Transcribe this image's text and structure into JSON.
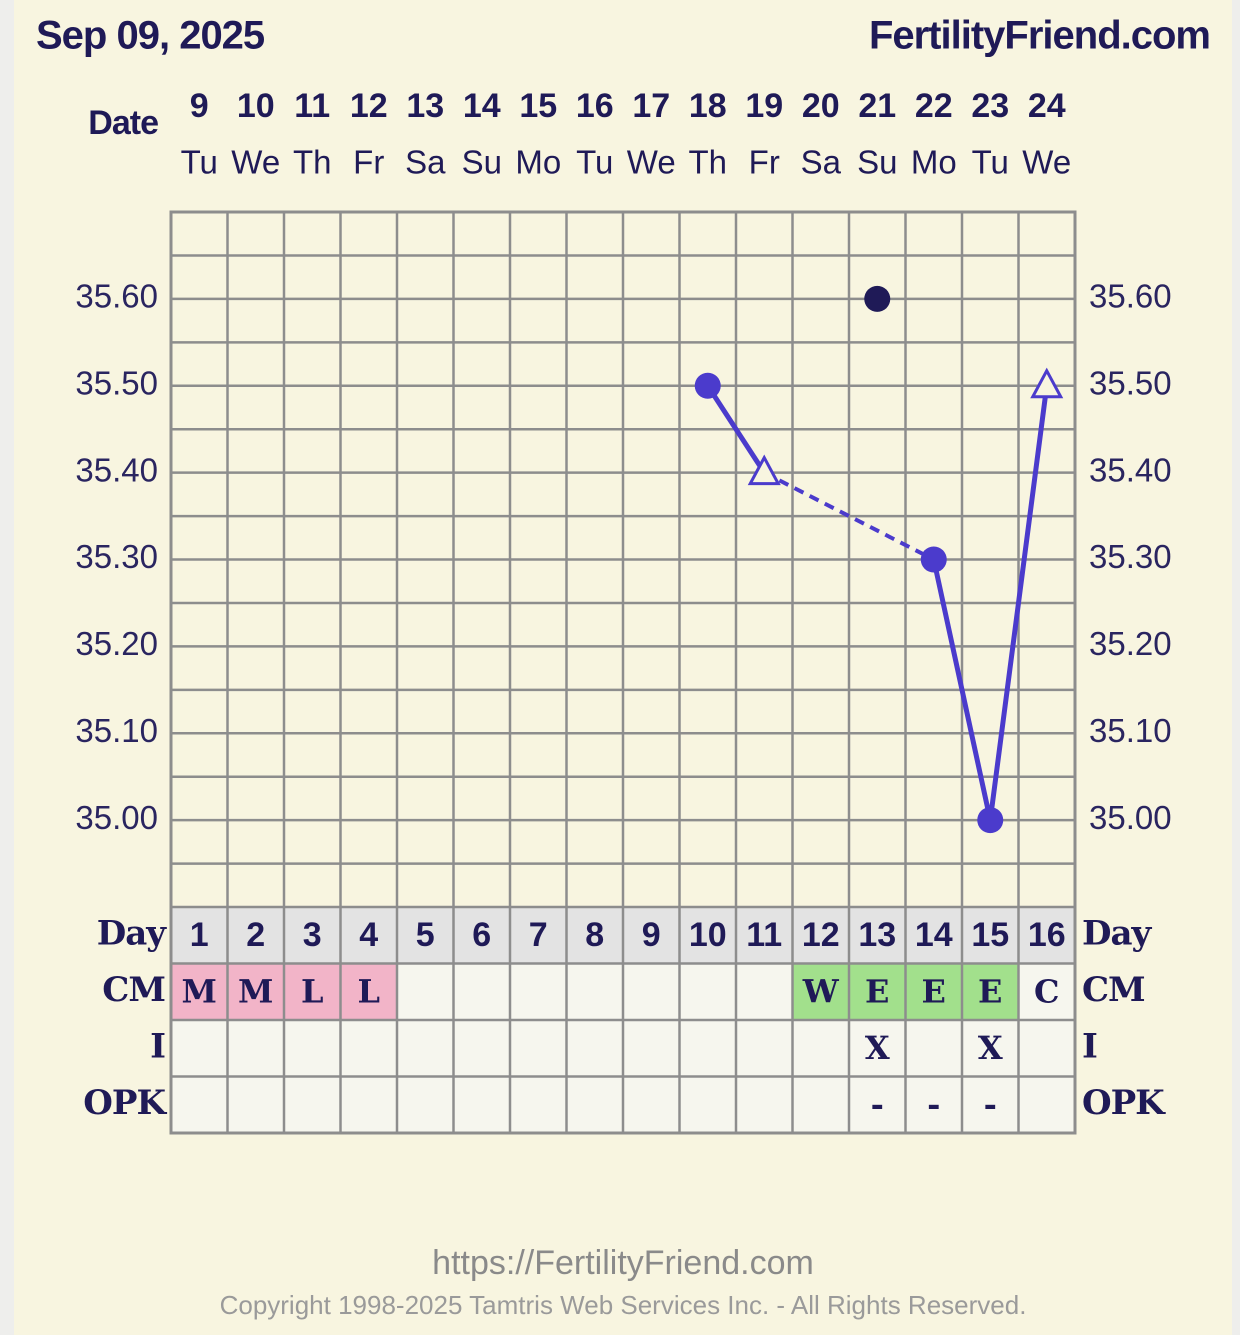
{
  "header": {
    "date": "Sep 09, 2025",
    "site": "FertilityFriend.com"
  },
  "chart_data": {
    "type": "line",
    "date_label": "Date",
    "dates": [
      "9",
      "10",
      "11",
      "12",
      "13",
      "14",
      "15",
      "16",
      "17",
      "18",
      "19",
      "20",
      "21",
      "22",
      "23",
      "24"
    ],
    "weekdays": [
      "Tu",
      "We",
      "Th",
      "Fr",
      "Sa",
      "Su",
      "Mo",
      "Tu",
      "We",
      "Th",
      "Fr",
      "Sa",
      "Su",
      "Mo",
      "Tu",
      "We"
    ],
    "ylim": [
      34.9,
      35.7
    ],
    "yticks": [
      {
        "value": 35.0,
        "label": "35.00"
      },
      {
        "value": 35.1,
        "label": "35.10"
      },
      {
        "value": 35.2,
        "label": "35.20"
      },
      {
        "value": 35.3,
        "label": "35.30"
      },
      {
        "value": 35.4,
        "label": "35.40"
      },
      {
        "value": 35.5,
        "label": "35.50"
      },
      {
        "value": 35.6,
        "label": "35.60"
      }
    ],
    "grid_yticks": [
      34.95,
      35.05,
      35.15,
      35.25,
      35.35,
      35.45,
      35.55,
      35.65
    ],
    "series": [
      {
        "color": "#4b3bcc",
        "gap_line": "dashed",
        "values": [
          null,
          null,
          null,
          null,
          null,
          null,
          null,
          null,
          null,
          35.5,
          35.4,
          null,
          null,
          35.3,
          35.0,
          35.5
        ],
        "markers": [
          null,
          null,
          null,
          null,
          null,
          null,
          null,
          null,
          null,
          "circle",
          "triangle",
          null,
          null,
          "circle",
          "circle",
          "triangle"
        ]
      },
      {
        "color": "#1f1a57",
        "values": [
          null,
          null,
          null,
          null,
          null,
          null,
          null,
          null,
          null,
          null,
          null,
          null,
          35.6,
          null,
          null,
          null
        ],
        "markers": [
          null,
          null,
          null,
          null,
          null,
          null,
          null,
          null,
          null,
          null,
          null,
          null,
          "circle",
          null,
          null,
          null
        ]
      }
    ]
  },
  "table": {
    "row_labels": [
      "Day",
      "CM",
      "I",
      "OPK"
    ],
    "rows": [
      [
        "1",
        "2",
        "3",
        "4",
        "5",
        "6",
        "7",
        "8",
        "9",
        "10",
        "11",
        "12",
        "13",
        "14",
        "15",
        "16"
      ],
      [
        "M",
        "M",
        "L",
        "L",
        null,
        null,
        null,
        null,
        null,
        null,
        null,
        "W",
        "E",
        "E",
        "E",
        "C"
      ],
      [
        null,
        null,
        null,
        null,
        null,
        null,
        null,
        null,
        null,
        null,
        null,
        null,
        "X",
        null,
        "X",
        null
      ],
      [
        null,
        null,
        null,
        null,
        null,
        null,
        null,
        null,
        null,
        null,
        null,
        null,
        "-",
        "-",
        "-",
        null
      ]
    ],
    "cm_colors": {
      "M": "#f2b4c8",
      "L": "#f2b4c8",
      "W": "#a2e08c",
      "E": "#a2e08c"
    }
  },
  "footer": {
    "url": "https://FertilityFriend.com",
    "copyright": "Copyright 1998-2025 Tamtris Web Services Inc. - All Rights Reserved."
  }
}
